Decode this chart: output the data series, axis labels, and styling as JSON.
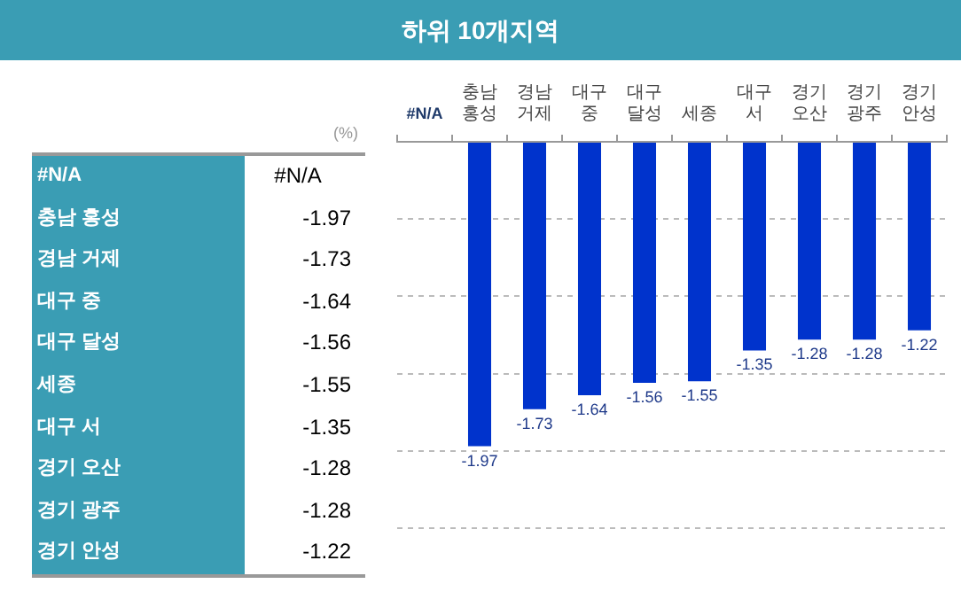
{
  "chart_data": {
    "type": "bar",
    "title": "하위 10개지역",
    "ylabel": "(%)",
    "categories": [
      "#N/A",
      "충남 홍성",
      "경남 거제",
      "대구 중",
      "대구 달성",
      "세종",
      "대구 서",
      "경기 오산",
      "경기 광주",
      "경기 안성"
    ],
    "values": [
      null,
      -1.97,
      -1.73,
      -1.64,
      -1.56,
      -1.55,
      -1.35,
      -1.28,
      -1.28,
      -1.22
    ],
    "value_labels": [
      "#N/A",
      "-1.97",
      "-1.73",
      "-1.64",
      "-1.56",
      "-1.55",
      "-1.35",
      "-1.28",
      "-1.28",
      "-1.22"
    ],
    "color": "#0033cc",
    "ylim": [
      -2.5,
      0
    ],
    "yticks": [
      {
        "value": -2.5,
        "label": null
      },
      {
        "value": -2,
        "label": null
      },
      {
        "value": -1.5,
        "label": null
      },
      {
        "value": -1,
        "label": null
      },
      {
        "value": -0.5,
        "label": null
      },
      {
        "value": 0,
        "label": null
      }
    ],
    "tick_labels": "x",
    "grid": "y",
    "legend": false
  }
}
